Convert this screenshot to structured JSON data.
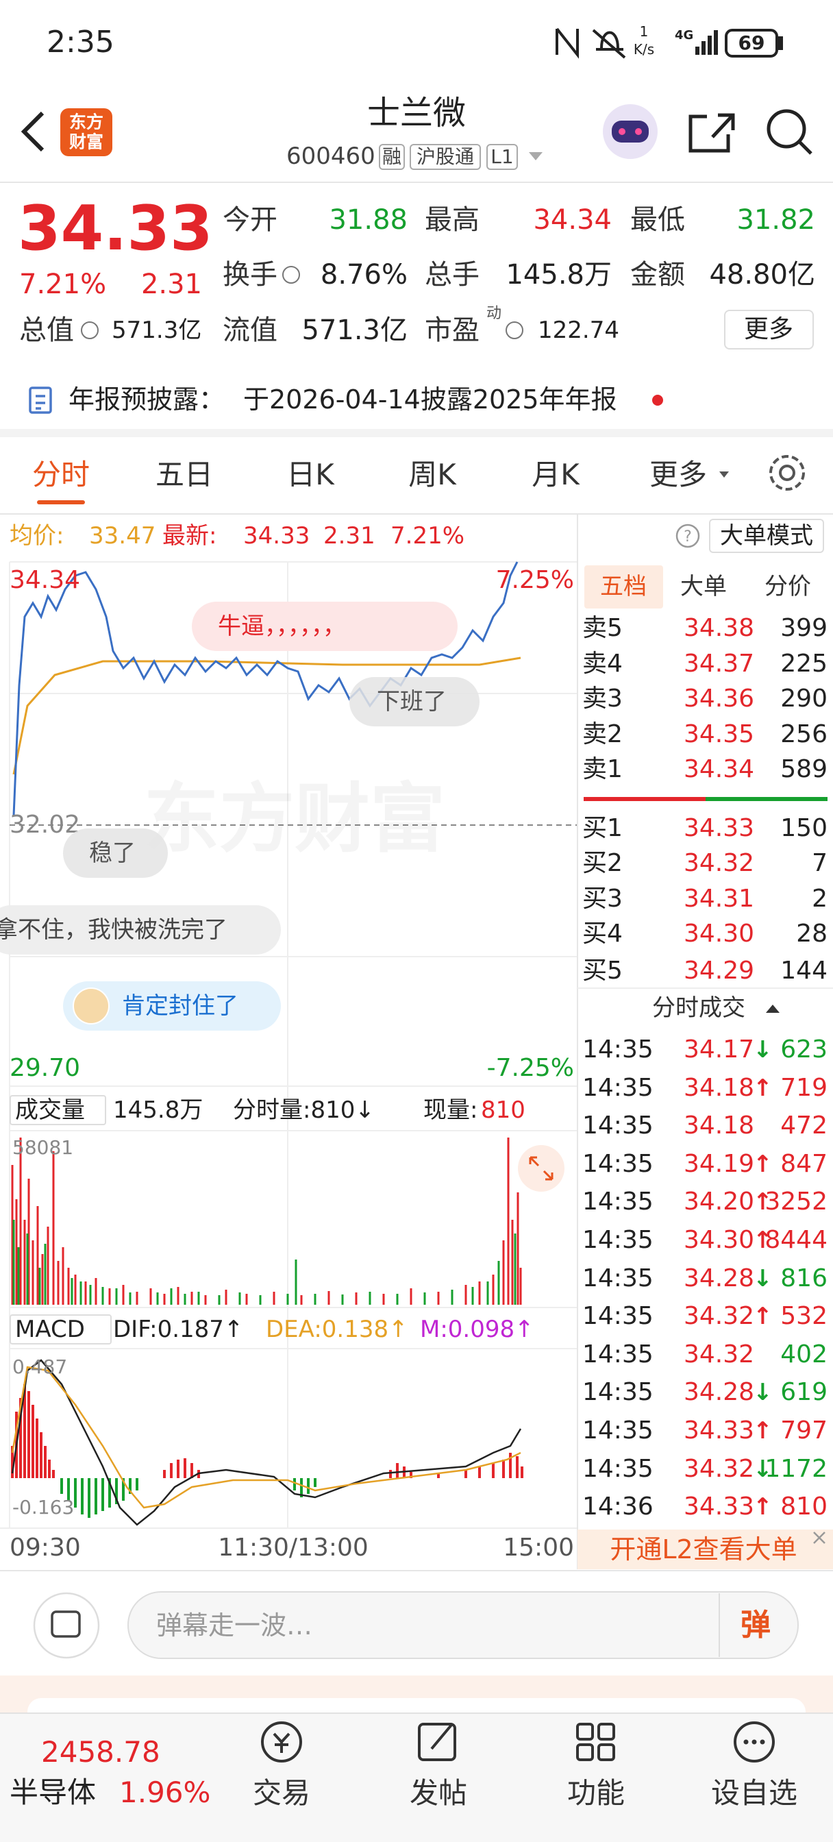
{
  "status": {
    "time": "2:35",
    "speed": "1",
    "speed_unit": "K/s",
    "network": "4G",
    "battery": "69"
  },
  "header": {
    "logo": "东方财富",
    "title": "士兰微",
    "code": "600460",
    "tags": [
      "融",
      "沪股通",
      "L1"
    ]
  },
  "quote": {
    "price": "34.33",
    "change_pct": "7.21%",
    "change": "2.31",
    "total": {
      "label": "总值",
      "value": "571.3亿"
    },
    "stats": [
      [
        {
          "label": "今开",
          "value": "31.88",
          "color": "green"
        },
        {
          "label": "最高",
          "value": "34.34",
          "color": "red"
        },
        {
          "label": "最低",
          "value": "31.82",
          "color": "green"
        }
      ],
      [
        {
          "label": "换手",
          "value": "8.76%",
          "color": "black"
        },
        {
          "label": "总手",
          "value": "145.8万",
          "color": "black"
        },
        {
          "label": "金额",
          "value": "48.80亿",
          "color": "black"
        }
      ],
      [
        {
          "label": "流值",
          "value": "571.3亿",
          "color": "black"
        },
        {
          "label": "市盈",
          "sup": "动",
          "value": "122.74",
          "color": "black"
        }
      ]
    ],
    "more": "更多"
  },
  "notice": {
    "label": "年报预披露：",
    "text": "于2026-04-14披露2025年年报"
  },
  "tabs": [
    "分时",
    "五日",
    "日K",
    "周K",
    "月K",
    "更多"
  ],
  "info": {
    "avg_label": "均价:",
    "avg": "33.47",
    "latest_label": "最新:",
    "latest": "34.33",
    "change": "2.31",
    "pct": "7.21%",
    "mode": "大单模式"
  },
  "chart": {
    "high": "34.34",
    "high_pct": "7.25%",
    "base": "32.02",
    "low": "29.70",
    "low_pct": "-7.25%",
    "watermark": "东方财富"
  },
  "danmaku": [
    "牛逼，，，，，，",
    "下班了",
    "稳了",
    "拿不住，我快被洗完了",
    "肯定封住了"
  ],
  "volume": {
    "label": "成交量",
    "total": "145.8万",
    "tick": "分时量:810↓",
    "now_label": "现量:",
    "now": "810",
    "max": "58081"
  },
  "macd": {
    "label": "MACD",
    "dif": "DIF:0.187↑",
    "dea": "DEA:0.138↑",
    "m": "M:0.098↑",
    "max": "0.487",
    "min": "-0.163"
  },
  "times": [
    "09:30",
    "11:30/13:00",
    "15:00"
  ],
  "book": {
    "tabs": [
      "五档",
      "大单",
      "分价"
    ],
    "asks": [
      {
        "label": "卖5",
        "price": "34.38",
        "vol": "399"
      },
      {
        "label": "卖4",
        "price": "34.37",
        "vol": "225"
      },
      {
        "label": "卖3",
        "price": "34.36",
        "vol": "290"
      },
      {
        "label": "卖2",
        "price": "34.35",
        "vol": "256"
      },
      {
        "label": "卖1",
        "price": "34.34",
        "vol": "589"
      }
    ],
    "bids": [
      {
        "label": "买1",
        "price": "34.33",
        "vol": "150"
      },
      {
        "label": "买2",
        "price": "34.32",
        "vol": "7"
      },
      {
        "label": "买3",
        "price": "34.31",
        "vol": "2"
      },
      {
        "label": "买4",
        "price": "34.30",
        "vol": "28"
      },
      {
        "label": "买5",
        "price": "34.29",
        "vol": "144"
      }
    ]
  },
  "trades": {
    "title": "分时成交",
    "rows": [
      {
        "time": "14:35",
        "price": "34.17",
        "dir": "↓",
        "vol": "623",
        "color": "green"
      },
      {
        "time": "14:35",
        "price": "34.18",
        "dir": "↑",
        "vol": "719",
        "color": "red"
      },
      {
        "time": "14:35",
        "price": "34.18",
        "vol": "472",
        "color": "red"
      },
      {
        "time": "14:35",
        "price": "34.19",
        "dir": "↑",
        "vol": "847",
        "color": "red"
      },
      {
        "time": "14:35",
        "price": "34.20",
        "dir": "↑",
        "vol": "3252",
        "color": "red"
      },
      {
        "time": "14:35",
        "price": "34.30",
        "dir": "↑",
        "vol": "8444",
        "color": "red"
      },
      {
        "time": "14:35",
        "price": "34.28",
        "dir": "↓",
        "vol": "816",
        "color": "green"
      },
      {
        "time": "14:35",
        "price": "34.32",
        "dir": "↑",
        "vol": "532",
        "color": "red"
      },
      {
        "time": "14:35",
        "price": "34.32",
        "vol": "402",
        "color": "green"
      },
      {
        "time": "14:35",
        "price": "34.28",
        "dir": "↓",
        "vol": "619",
        "color": "green"
      },
      {
        "time": "14:35",
        "price": "34.33",
        "dir": "↑",
        "vol": "797",
        "color": "red"
      },
      {
        "time": "14:35",
        "price": "34.32",
        "dir": "↓",
        "vol": "1172",
        "color": "green"
      },
      {
        "time": "14:36",
        "price": "34.33",
        "dir": "↑",
        "vol": "810",
        "color": "red"
      }
    ]
  },
  "l2": "开通L2查看大单",
  "input": {
    "placeholder": "弹幕走一波…",
    "button": "弹"
  },
  "nav": {
    "index": {
      "value": "2458.78",
      "name": "半导体",
      "pct": "1.96%"
    },
    "items": [
      "交易",
      "发帖",
      "功能",
      "设自选"
    ]
  }
}
